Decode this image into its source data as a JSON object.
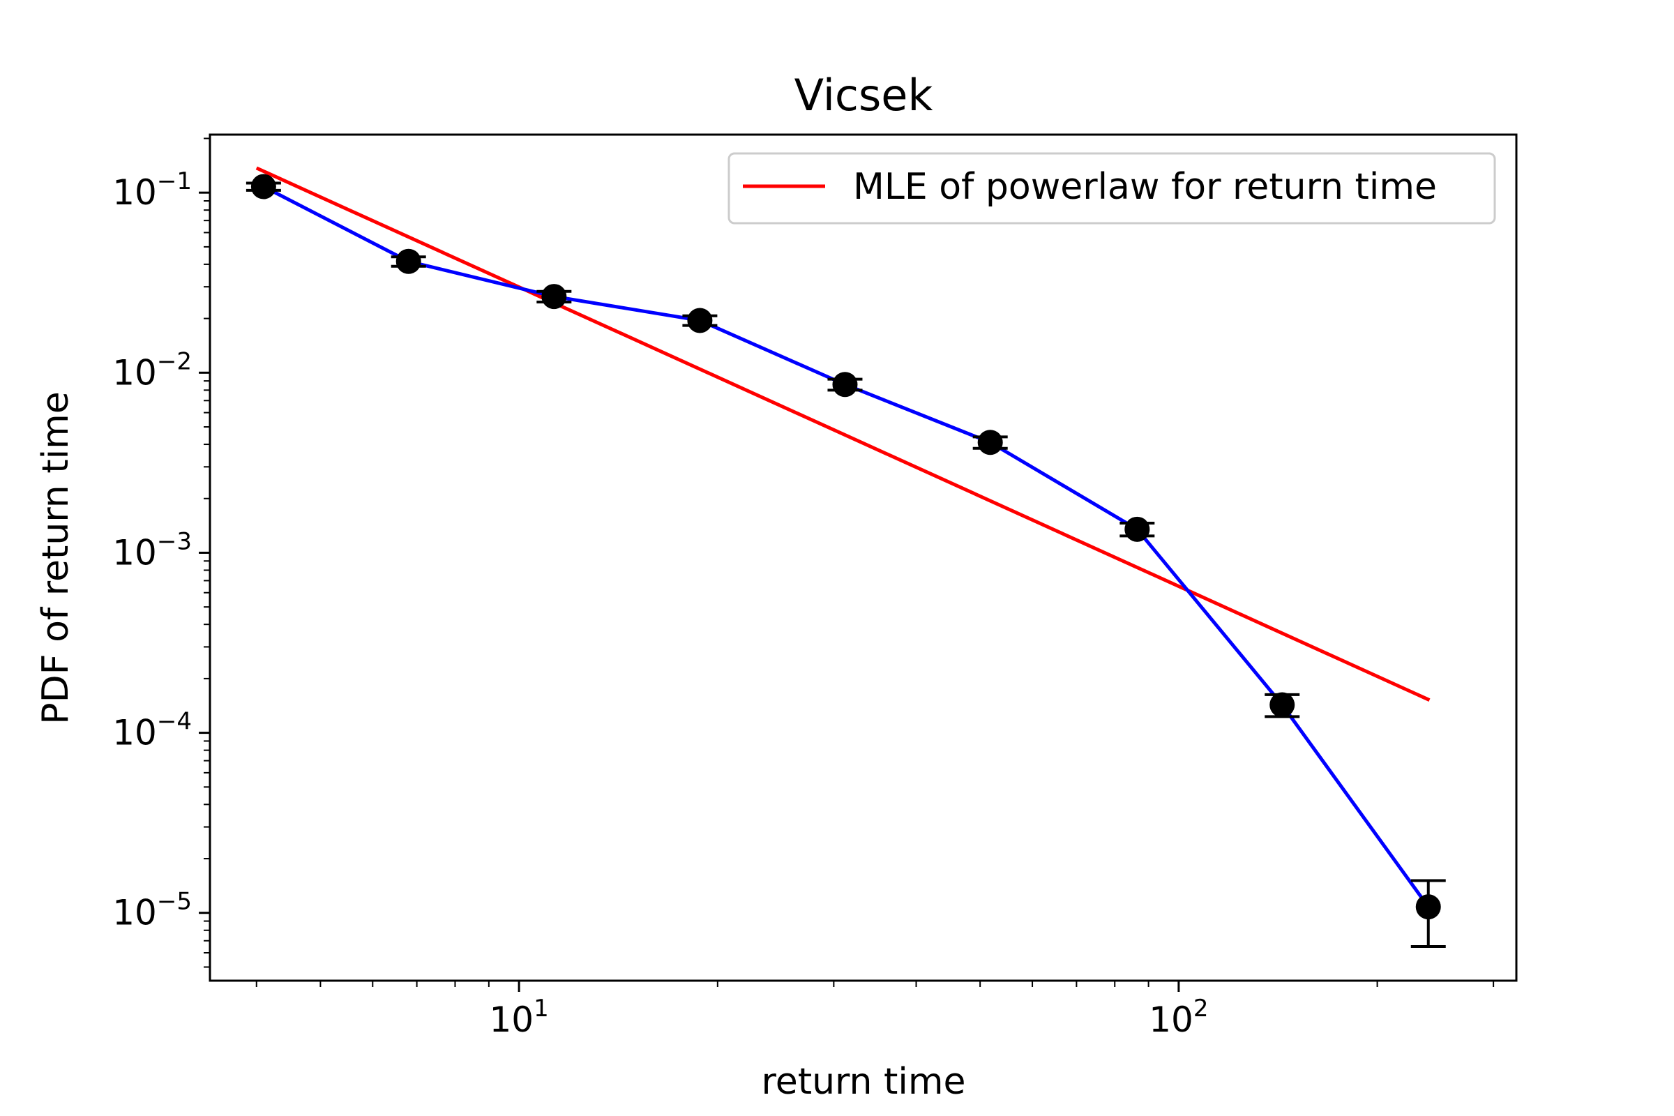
{
  "chart_data": {
    "type": "line",
    "title": "Vicsek",
    "xlabel": "return time",
    "ylabel": "PDF of return time",
    "xscale": "log",
    "yscale": "log",
    "xlim": [
      3.4,
      325
    ],
    "ylim": [
      4.2e-06,
      0.21
    ],
    "grid": false,
    "legend_position": "top-right",
    "x_ticks": [
      {
        "value": 10,
        "base": "10",
        "exp": "1"
      },
      {
        "value": 100,
        "base": "10",
        "exp": "2"
      }
    ],
    "y_ticks": [
      {
        "value": 0.1,
        "base": "10",
        "exp": "−1"
      },
      {
        "value": 0.01,
        "base": "10",
        "exp": "−2"
      },
      {
        "value": 0.001,
        "base": "10",
        "exp": "−3"
      },
      {
        "value": 0.0001,
        "base": "10",
        "exp": "−4"
      },
      {
        "value": 1e-05,
        "base": "10",
        "exp": "−5"
      }
    ],
    "series": [
      {
        "kind": "data",
        "color": "#0000ff",
        "marker_color": "#000000",
        "x": [
          4.1,
          6.8,
          11.3,
          18.8,
          31.2,
          51.8,
          86.5,
          143.5,
          239
        ],
        "y": [
          0.108,
          0.0415,
          0.0265,
          0.0195,
          0.0086,
          0.0041,
          0.00135,
          0.000143,
          1.08e-05
        ],
        "err": [
          0.005,
          0.0025,
          0.0018,
          0.0012,
          0.0006,
          0.0003,
          0.00011,
          2e-05,
          4.3e-06
        ]
      },
      {
        "kind": "fit",
        "name": "MLE of powerlaw for return time",
        "color": "#ff0000",
        "x": [
          4.0,
          240
        ],
        "y": [
          0.137,
          0.000152
        ]
      }
    ]
  }
}
